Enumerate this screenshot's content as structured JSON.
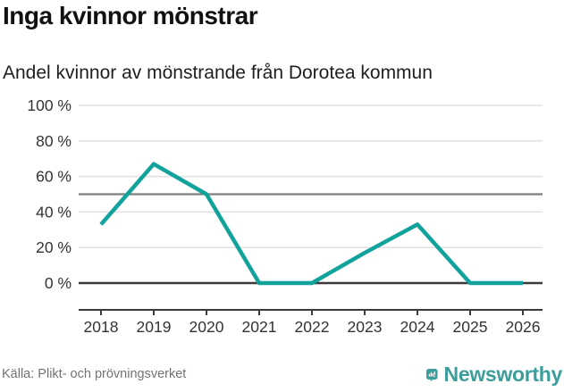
{
  "header": {
    "title": "Inga kvinnor mönstrar",
    "subtitle": "Andel kvinnor av mönstrande från Dorotea kommun"
  },
  "chart_data": {
    "type": "line",
    "title": "Inga kvinnor mönstrar",
    "subtitle": "Andel kvinnor av mönstrande från Dorotea kommun",
    "categories": [
      "2018",
      "2019",
      "2020",
      "2021",
      "2022",
      "2023",
      "2024",
      "2025",
      "2026"
    ],
    "series": [
      {
        "name": "Andel kvinnor av mönstrande",
        "values": [
          33,
          67,
          50,
          0,
          0,
          17,
          33,
          0,
          0
        ]
      }
    ],
    "unit": "%",
    "ylim": [
      0,
      100
    ],
    "yticks": [
      0,
      20,
      40,
      60,
      80,
      100
    ],
    "ytick_labels": [
      "0 %",
      "20 %",
      "40 %",
      "60 %",
      "80 %",
      "100 %"
    ],
    "reference_line_y": 50,
    "grid": true,
    "legend": "none",
    "line_color": "#10a29b"
  },
  "footer": {
    "source": "Källa: Plikt- och prövningsverket",
    "brand": "Newsworthy"
  },
  "colors": {
    "accent_teal": "#10a29b",
    "brand_teal": "#3c9e9a",
    "grid_light": "#e0e0e0",
    "grid_reference": "#7d7d7d",
    "axis_dark": "#3a3a3a",
    "text_axis": "#333333",
    "text_source": "#737373"
  }
}
